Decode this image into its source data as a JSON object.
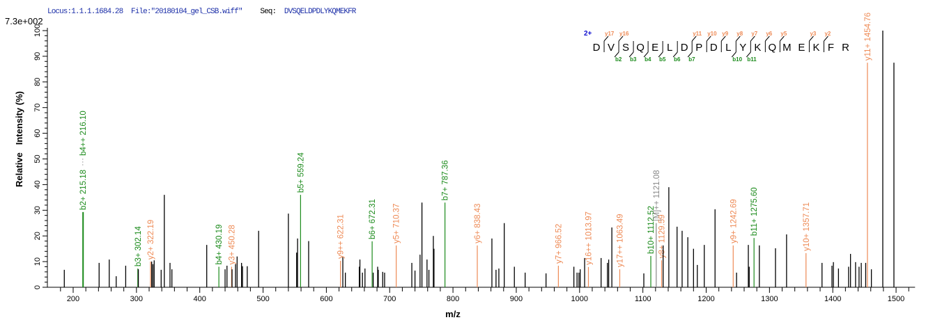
{
  "header": {
    "locus": "Locus:1.1.1.1684.28",
    "file": "File:\"20180104_gel_CSB.wiff\"",
    "seq_label": "Seq:",
    "sequence": "DVSQELDPDLYKQMEKFR"
  },
  "colors": {
    "b_ion": "#1a8a1a",
    "y_ion": "#ee8a55",
    "other_ion": "#888888",
    "unassigned": "#000000",
    "title_blue": "#1c2fa8",
    "charge_blue": "#1010d0"
  },
  "chart_data": {
    "type": "bar",
    "scale_label": "7.3e+002",
    "xlabel": "m/z",
    "ylabel": "Relative   Intensity (%)",
    "xlim": [
      160,
      1530
    ],
    "ylim": [
      0,
      100
    ],
    "x_ticks": [
      "200",
      "300",
      "400",
      "500",
      "600",
      "700",
      "800",
      "900",
      "1000",
      "1100",
      "1200",
      "1300",
      "1400",
      "1500"
    ],
    "y_ticks": [
      "0",
      "10",
      "20",
      "30",
      "40",
      "50",
      "60",
      "70",
      "80",
      "90",
      "100"
    ],
    "grid": false,
    "peaks": [
      {
        "mz": 186,
        "i": 6.8
      },
      {
        "mz": 215.18,
        "i": 29.3,
        "type": "b",
        "label": "b2+ 215.18"
      },
      {
        "mz": 216.1,
        "i": 29.3,
        "type": "b",
        "label": "b4++ 216.10"
      },
      {
        "mz": 241,
        "i": 9.5
      },
      {
        "mz": 257,
        "i": 10.8
      },
      {
        "mz": 268,
        "i": 4.3
      },
      {
        "mz": 283,
        "i": 8.4
      },
      {
        "mz": 302.14,
        "i": 7.3,
        "type": "b",
        "label": "b3+ 302.14"
      },
      {
        "mz": 303,
        "i": 7.0
      },
      {
        "mz": 322.19,
        "i": 10,
        "type": "y",
        "label": "y2+ 322.19"
      },
      {
        "mz": 324,
        "i": 10
      },
      {
        "mz": 326,
        "i": 9
      },
      {
        "mz": 328,
        "i": 10.5
      },
      {
        "mz": 339,
        "i": 6.8
      },
      {
        "mz": 344,
        "i": 36
      },
      {
        "mz": 353,
        "i": 9.5
      },
      {
        "mz": 356,
        "i": 7
      },
      {
        "mz": 411,
        "i": 16.5
      },
      {
        "mz": 430.19,
        "i": 8,
        "type": "b",
        "label": "b4+ 430.19"
      },
      {
        "mz": 440,
        "i": 7
      },
      {
        "mz": 443,
        "i": 8.4
      },
      {
        "mz": 450.28,
        "i": 8,
        "type": "y",
        "label": "y3+ 450.28"
      },
      {
        "mz": 451,
        "i": 7
      },
      {
        "mz": 456.5,
        "i": 9
      },
      {
        "mz": 459,
        "i": 12
      },
      {
        "mz": 466,
        "i": 9.5
      },
      {
        "mz": 467.5,
        "i": 8.2
      },
      {
        "mz": 475,
        "i": 8.2
      },
      {
        "mz": 493,
        "i": 22
      },
      {
        "mz": 540,
        "i": 28.7
      },
      {
        "mz": 553,
        "i": 13.5
      },
      {
        "mz": 554.5,
        "i": 19
      },
      {
        "mz": 559.24,
        "i": 36,
        "type": "b",
        "label": "b5+ 559.24"
      },
      {
        "mz": 572,
        "i": 18
      },
      {
        "mz": 622.31,
        "i": 10.3,
        "type": "y",
        "label": "y9++ 622.31"
      },
      {
        "mz": 626,
        "i": 11.7
      },
      {
        "mz": 630,
        "i": 5.7
      },
      {
        "mz": 652,
        "i": 8
      },
      {
        "mz": 653,
        "i": 10.8
      },
      {
        "mz": 657,
        "i": 5.7
      },
      {
        "mz": 661,
        "i": 7.3
      },
      {
        "mz": 672.31,
        "i": 17.9,
        "type": "b",
        "label": "b6+ 672.31"
      },
      {
        "mz": 674,
        "i": 5.7
      },
      {
        "mz": 681,
        "i": 8
      },
      {
        "mz": 682,
        "i": 6.8
      },
      {
        "mz": 689,
        "i": 6
      },
      {
        "mz": 692,
        "i": 5.7
      },
      {
        "mz": 710.37,
        "i": 16.3,
        "type": "y",
        "label": "y5+ 710.37"
      },
      {
        "mz": 735,
        "i": 9.5
      },
      {
        "mz": 740,
        "i": 6.5
      },
      {
        "mz": 748,
        "i": 12.7
      },
      {
        "mz": 751,
        "i": 33
      },
      {
        "mz": 759,
        "i": 10.8
      },
      {
        "mz": 762,
        "i": 6.8
      },
      {
        "mz": 769,
        "i": 20
      },
      {
        "mz": 770,
        "i": 15
      },
      {
        "mz": 787.36,
        "i": 33,
        "type": "b",
        "label": "b7+ 787.36"
      },
      {
        "mz": 838.43,
        "i": 16.3,
        "type": "y",
        "label": "y6+ 838.43"
      },
      {
        "mz": 861.5,
        "i": 19
      },
      {
        "mz": 868,
        "i": 6.8
      },
      {
        "mz": 872.5,
        "i": 7.3
      },
      {
        "mz": 881,
        "i": 25
      },
      {
        "mz": 897,
        "i": 8
      },
      {
        "mz": 914,
        "i": 5.7
      },
      {
        "mz": 947,
        "i": 5.4
      },
      {
        "mz": 966.52,
        "i": 8.4,
        "type": "y",
        "label": "y7+ 966.52"
      },
      {
        "mz": 991,
        "i": 8
      },
      {
        "mz": 996,
        "i": 5.7
      },
      {
        "mz": 999,
        "i": 5.7
      },
      {
        "mz": 1001,
        "i": 7
      },
      {
        "mz": 1008,
        "i": 11.4
      },
      {
        "mz": 1013.97,
        "i": 7.9,
        "type": "y",
        "label": "y16++ 1013.97"
      },
      {
        "mz": 1034,
        "i": 11.4
      },
      {
        "mz": 1044,
        "i": 9.5
      },
      {
        "mz": 1046,
        "i": 10.8
      },
      {
        "mz": 1051,
        "i": 23.3
      },
      {
        "mz": 1063.49,
        "i": 7,
        "type": "y",
        "label": "y17++ 1063.49"
      },
      {
        "mz": 1101.5,
        "i": 5.4
      },
      {
        "mz": 1112.52,
        "i": 12.2,
        "type": "b",
        "label": "b10+ 1112.52"
      },
      {
        "mz": 1121.08,
        "i": 25,
        "type": "other",
        "label": "[M]++ 1121.08"
      },
      {
        "mz": 1129.59,
        "i": 10.5,
        "type": "y",
        "label": "y8+ 1129.59"
      },
      {
        "mz": 1132,
        "i": 16.3
      },
      {
        "mz": 1141,
        "i": 39
      },
      {
        "mz": 1154,
        "i": 23.6
      },
      {
        "mz": 1162,
        "i": 22
      },
      {
        "mz": 1171,
        "i": 19.5
      },
      {
        "mz": 1180,
        "i": 15
      },
      {
        "mz": 1186,
        "i": 8.7
      },
      {
        "mz": 1197,
        "i": 16.5
      },
      {
        "mz": 1214,
        "i": 30.4
      },
      {
        "mz": 1242.69,
        "i": 16.3,
        "type": "y",
        "label": "y9+ 1242.69"
      },
      {
        "mz": 1248,
        "i": 5.7
      },
      {
        "mz": 1266.6,
        "i": 16.5
      },
      {
        "mz": 1268,
        "i": 8
      },
      {
        "mz": 1275.6,
        "i": 19.2,
        "type": "b",
        "label": "b11+ 1275.60"
      },
      {
        "mz": 1284,
        "i": 16.3
      },
      {
        "mz": 1309.5,
        "i": 15.2
      },
      {
        "mz": 1327,
        "i": 20.6
      },
      {
        "mz": 1357.71,
        "i": 13.3,
        "type": "y",
        "label": "y10+ 1357.71"
      },
      {
        "mz": 1383,
        "i": 9.5
      },
      {
        "mz": 1398.7,
        "i": 8.4
      },
      {
        "mz": 1401,
        "i": 9.8
      },
      {
        "mz": 1409,
        "i": 7.3
      },
      {
        "mz": 1425,
        "i": 8
      },
      {
        "mz": 1428,
        "i": 13
      },
      {
        "mz": 1436,
        "i": 9.8
      },
      {
        "mz": 1441.5,
        "i": 8
      },
      {
        "mz": 1445,
        "i": 9.5
      },
      {
        "mz": 1452,
        "i": 9.5
      },
      {
        "mz": 1454.76,
        "i": 87.5,
        "type": "y",
        "label": "y11+ 1454.76"
      },
      {
        "mz": 1461,
        "i": 7
      },
      {
        "mz": 1479,
        "i": 100
      },
      {
        "mz": 1496.6,
        "i": 87.5
      }
    ]
  },
  "fragment_map": {
    "charge": "2+",
    "residues": [
      "D",
      "V",
      "S",
      "Q",
      "E",
      "L",
      "D",
      "P",
      "D",
      "L",
      "Y",
      "K",
      "Q",
      "M",
      "E",
      "K",
      "F",
      "R"
    ],
    "cleavages": [
      {
        "after": 1,
        "y": "y17"
      },
      {
        "after": 2,
        "y": "y16",
        "b": "b2"
      },
      {
        "after": 3,
        "b": "b3"
      },
      {
        "after": 4,
        "b": "b4"
      },
      {
        "after": 5,
        "b": "b5"
      },
      {
        "after": 6,
        "b": "b6"
      },
      {
        "after": 7,
        "y": "y11",
        "b": "b7"
      },
      {
        "after": 8,
        "y": "y10"
      },
      {
        "after": 9,
        "y": "y9"
      },
      {
        "after": 10,
        "y": "y8",
        "b": "b10"
      },
      {
        "after": 11,
        "y": "y7",
        "b": "b11"
      },
      {
        "after": 12,
        "y": "y6"
      },
      {
        "after": 13,
        "y": "y5"
      },
      {
        "after": 15,
        "y": "y3"
      },
      {
        "after": 16,
        "y": "y2"
      }
    ]
  }
}
